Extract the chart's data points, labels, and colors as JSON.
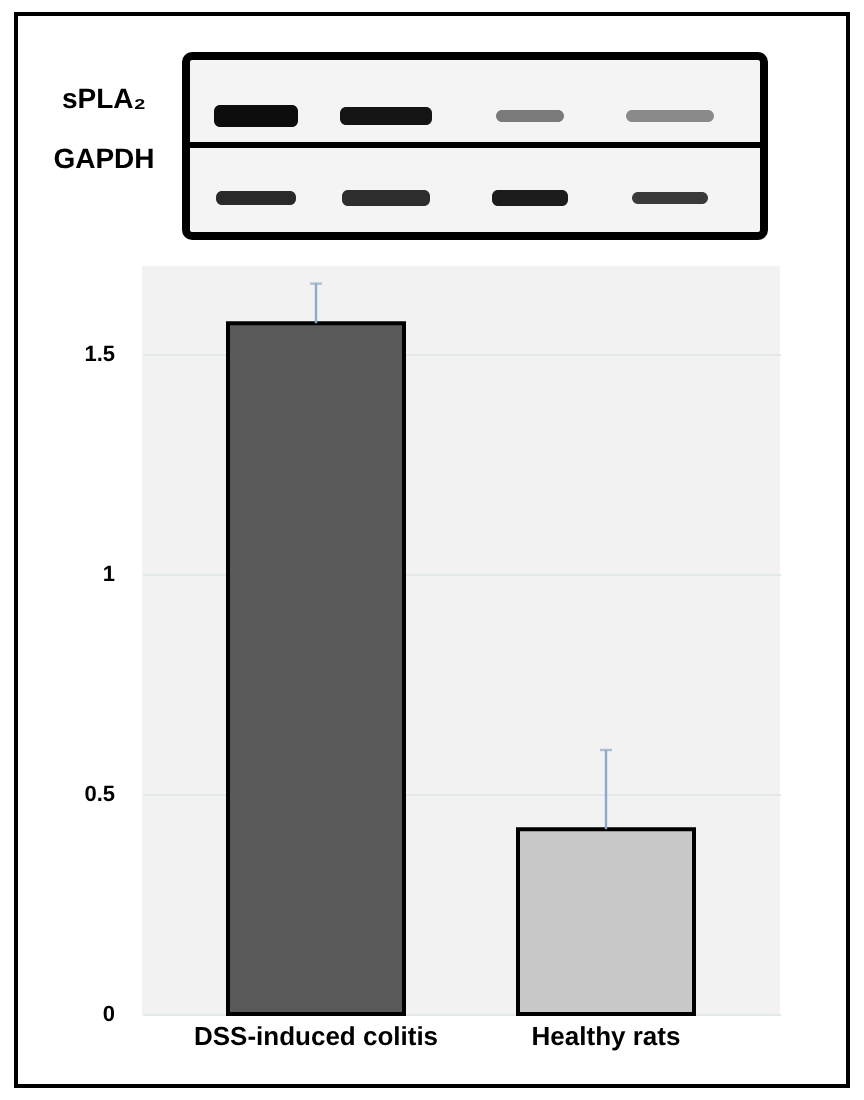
{
  "chart_data": {
    "type": "bar",
    "categories": [
      "DSS-induced colitis",
      "Healthy rats"
    ],
    "values": [
      1.57,
      0.42
    ],
    "colors": [
      "#595959",
      "#c8c8c8"
    ],
    "errors": [
      [
        1.57,
        1.66
      ],
      [
        0.42,
        0.6
      ]
    ],
    "ylim": [
      0,
      1.7
    ],
    "yticks": [
      0,
      0.5,
      1,
      1.5
    ],
    "grid": "y",
    "annotations": [
      "sPLA₂",
      "GAPDH"
    ]
  }
}
